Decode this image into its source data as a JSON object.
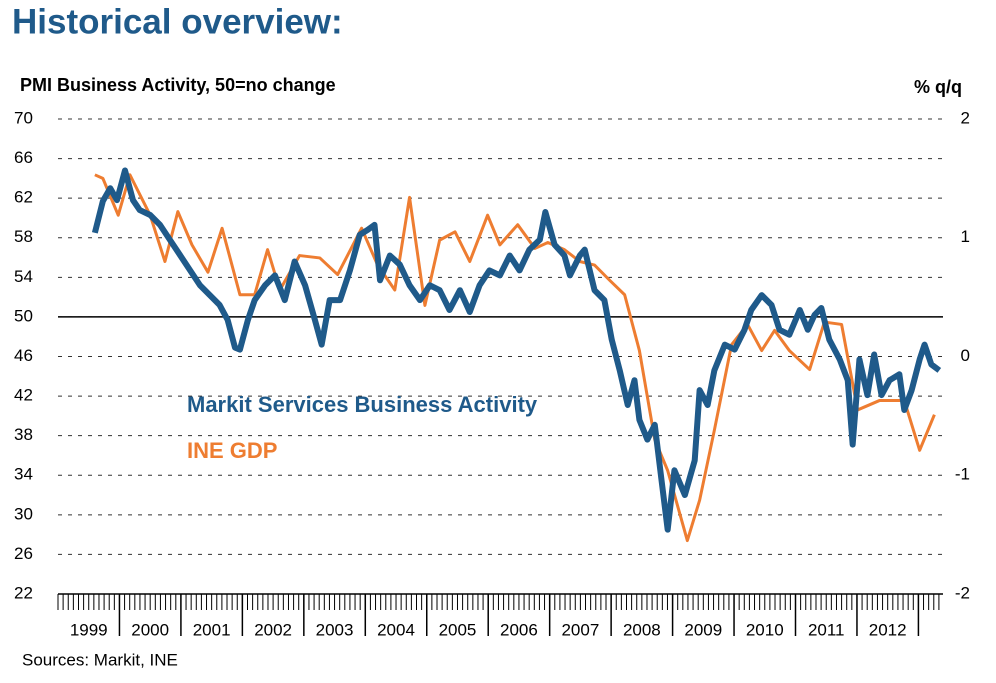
{
  "chart_data": {
    "type": "line",
    "page_title": "Historical overview:",
    "y_label": "PMI Business Activity, 50=no change",
    "y2_label": "% q/q",
    "source": "Sources: Markit, INE",
    "categories": [
      "1999",
      "2000",
      "2001",
      "2002",
      "2003",
      "2004",
      "2005",
      "2006",
      "2007",
      "2008",
      "2009",
      "2010",
      "2011",
      "2012"
    ],
    "xlim": [
      1999,
      2013.4
    ],
    "xticks": [
      2000,
      2001,
      2002,
      2003,
      2004,
      2005,
      2006,
      2007,
      2008,
      2009,
      2010,
      2011,
      2012,
      2013
    ],
    "ylim": [
      22,
      70
    ],
    "yticks": [
      22,
      26,
      30,
      34,
      38,
      42,
      46,
      50,
      54,
      58,
      62,
      66,
      70
    ],
    "y2lim": [
      -2,
      2
    ],
    "y2ticks": [
      -2,
      -1,
      0,
      1,
      2
    ],
    "reference_line": 50,
    "grid": true,
    "series": [
      {
        "name": "Markit Services Business Activity",
        "color": "#1f5a8a",
        "axis": "y",
        "x": [
          1999.6,
          1999.73,
          1999.85,
          1999.96,
          2000.09,
          2000.22,
          2000.33,
          2000.5,
          2000.66,
          2000.82,
          2000.98,
          2001.15,
          2001.31,
          2001.47,
          2001.63,
          2001.76,
          2001.88,
          2001.96,
          2002.09,
          2002.2,
          2002.37,
          2002.53,
          2002.69,
          2002.85,
          2003.02,
          2003.18,
          2003.29,
          2003.42,
          2003.59,
          2003.75,
          2003.91,
          2004.04,
          2004.15,
          2004.24,
          2004.4,
          2004.56,
          2004.72,
          2004.89,
          2005.05,
          2005.21,
          2005.37,
          2005.54,
          2005.7,
          2005.86,
          2006.02,
          2006.19,
          2006.35,
          2006.51,
          2006.67,
          2006.84,
          2006.93,
          2007.08,
          2007.24,
          2007.33,
          2007.49,
          2007.57,
          2007.73,
          2007.89,
          2008.01,
          2008.14,
          2008.27,
          2008.38,
          2008.46,
          2008.59,
          2008.71,
          2008.82,
          2008.92,
          2009.03,
          2009.2,
          2009.36,
          2009.44,
          2009.57,
          2009.68,
          2009.85,
          2010.01,
          2010.17,
          2010.28,
          2010.45,
          2010.61,
          2010.74,
          2010.9,
          2011.07,
          2011.2,
          2011.31,
          2011.42,
          2011.55,
          2011.72,
          2011.85,
          2011.93,
          2012.04,
          2012.17,
          2012.28,
          2012.4,
          2012.53,
          2012.69,
          2012.77,
          2012.89,
          2013.02,
          2013.1,
          2013.21,
          2013.34
        ],
        "values": [
          58.5,
          61.7,
          63,
          61.8,
          64.8,
          61.8,
          60.8,
          60.3,
          59.3,
          57.8,
          56.3,
          54.7,
          53.2,
          52.2,
          51.2,
          49.7,
          46.9,
          46.7,
          49.7,
          51.7,
          53.2,
          54.2,
          51.7,
          55.6,
          53.2,
          49.7,
          47.2,
          51.7,
          51.7,
          54.7,
          58.3,
          58.8,
          59.3,
          53.7,
          56.2,
          55.3,
          53.2,
          51.7,
          53.2,
          52.7,
          50.7,
          52.7,
          50.5,
          53.2,
          54.7,
          54.2,
          56.2,
          54.7,
          56.8,
          57.8,
          60.6,
          57.3,
          56.2,
          54.2,
          56.2,
          56.8,
          52.7,
          51.7,
          47.7,
          44.6,
          41.1,
          43.6,
          39.6,
          37.6,
          39.1,
          33.5,
          28.5,
          34.5,
          32,
          35.5,
          42.6,
          41.1,
          44.6,
          47.2,
          46.7,
          48.7,
          50.7,
          52.2,
          51.2,
          48.7,
          48.2,
          50.7,
          48.7,
          50.2,
          50.9,
          47.7,
          45.7,
          43.6,
          37.1,
          45.7,
          42.1,
          46.2,
          42.1,
          43.6,
          44.2,
          40.6,
          42.6,
          45.7,
          47.2,
          45.2,
          44.6
        ]
      },
      {
        "name": "INE GDP",
        "color": "#ee7d31",
        "axis": "y2",
        "x": [
          1999.6,
          1999.73,
          1999.98,
          2000.17,
          2000.5,
          2000.74,
          2000.95,
          2001.18,
          2001.44,
          2001.67,
          2001.96,
          2002.2,
          2002.41,
          2002.61,
          2002.93,
          2003.26,
          2003.55,
          2003.94,
          2004.2,
          2004.48,
          2004.72,
          2004.97,
          2005.21,
          2005.46,
          2005.7,
          2005.99,
          2006.19,
          2006.48,
          2006.76,
          2006.97,
          2007.24,
          2007.49,
          2007.73,
          2007.98,
          2008.22,
          2008.46,
          2008.71,
          2008.92,
          2009.24,
          2009.44,
          2009.68,
          2009.96,
          2010.22,
          2010.45,
          2010.66,
          2010.9,
          2011.23,
          2011.47,
          2011.75,
          2012.01,
          2012.37,
          2012.77,
          2013.02,
          2013.26
        ],
        "values": [
          1.53,
          1.5,
          1.19,
          1.53,
          1.19,
          0.8,
          1.22,
          0.94,
          0.71,
          1.08,
          0.52,
          0.52,
          0.9,
          0.56,
          0.85,
          0.83,
          0.69,
          1.08,
          0.77,
          0.56,
          1.34,
          0.43,
          0.98,
          1.05,
          0.8,
          1.19,
          0.94,
          1.11,
          0.91,
          0.96,
          0.9,
          0.8,
          0.77,
          0.64,
          0.52,
          0.05,
          -0.7,
          -0.96,
          -1.55,
          -1.21,
          -0.62,
          0.1,
          0.27,
          0.05,
          0.22,
          0.05,
          -0.11,
          0.29,
          0.27,
          -0.45,
          -0.37,
          -0.37,
          -0.79,
          -0.49
        ]
      }
    ]
  }
}
